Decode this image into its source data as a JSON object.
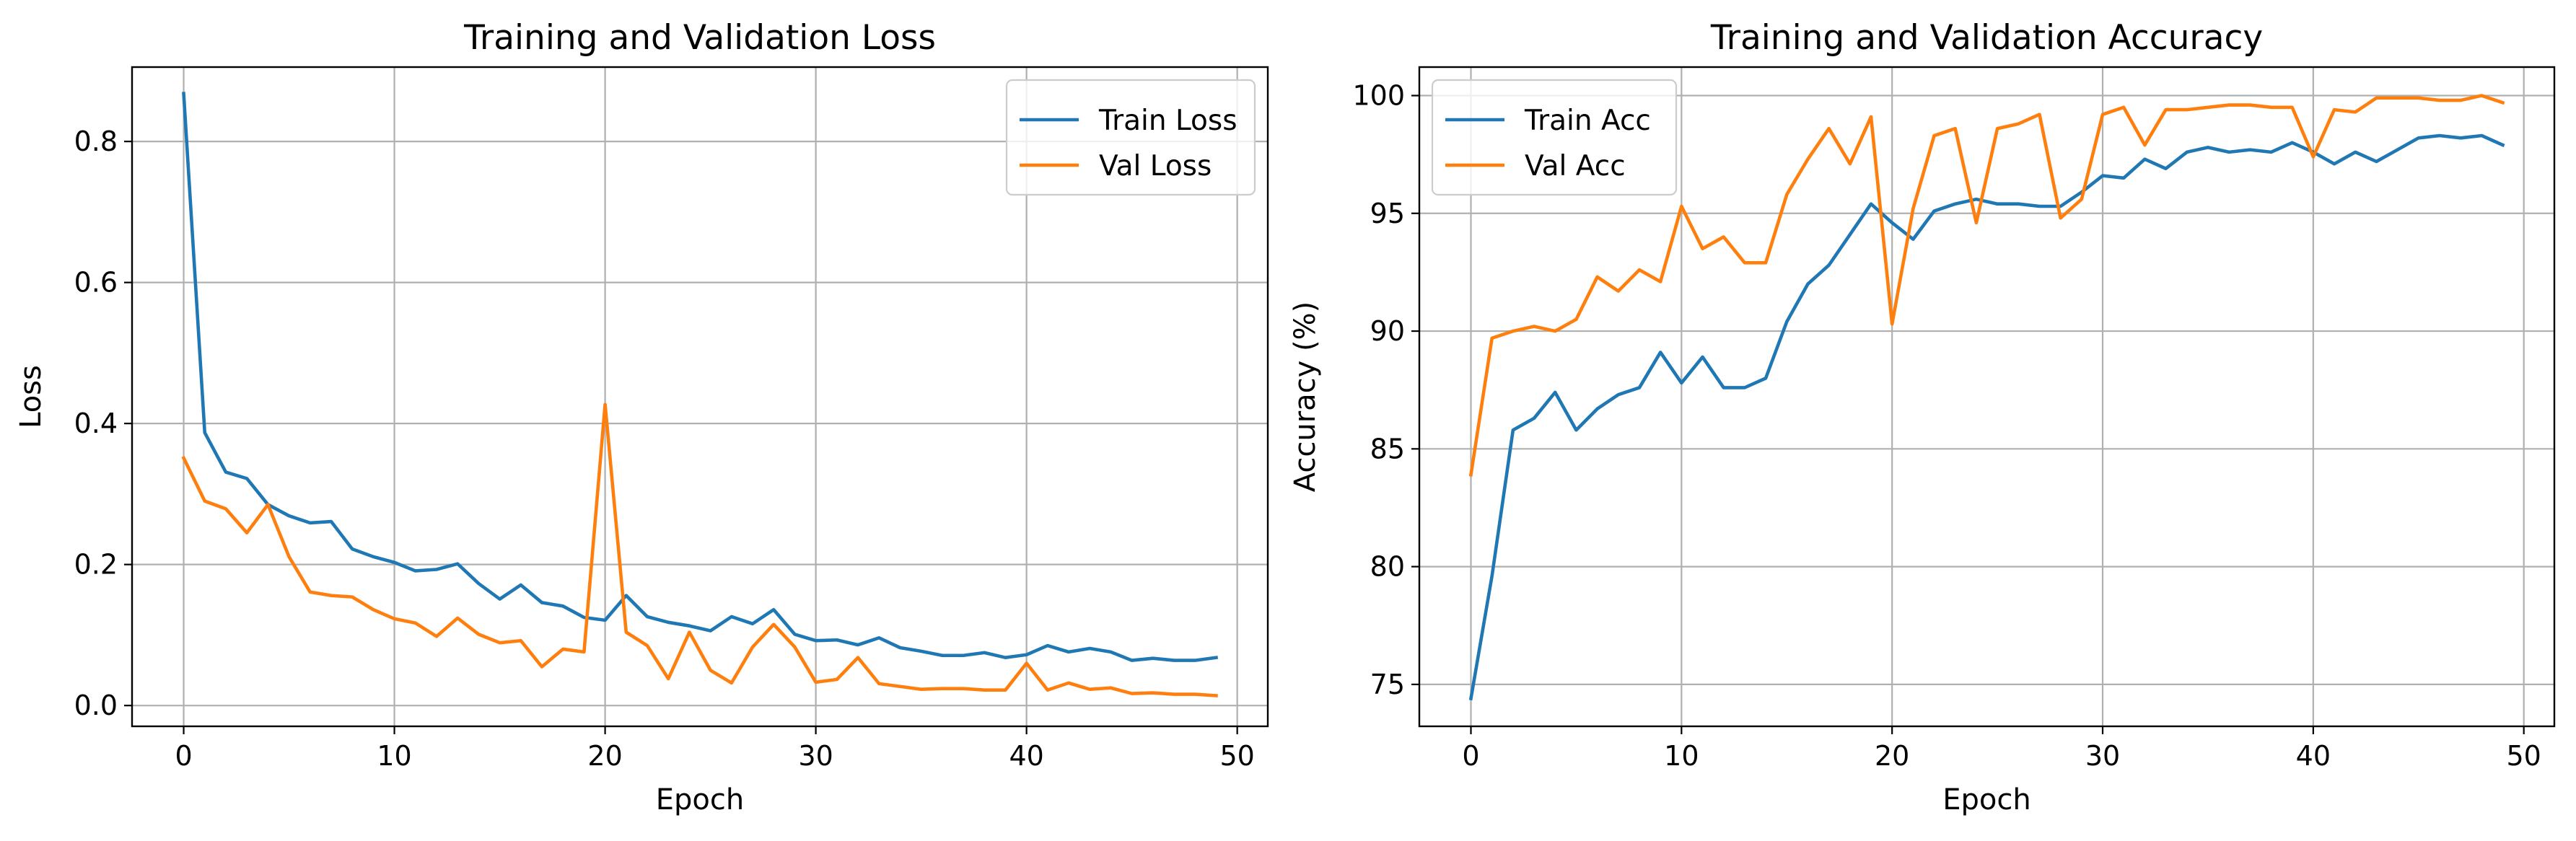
{
  "colors": {
    "train": "#1f77b4",
    "val": "#ff7f0e",
    "grid": "#b0b0b0",
    "axis": "#000000"
  },
  "chart_data": [
    {
      "type": "line",
      "title": "Training and Validation Loss",
      "xlabel": "Epoch",
      "ylabel": "Loss",
      "xlim": [
        -2.45,
        51.45
      ],
      "ylim": [
        -0.0295,
        0.9055
      ],
      "xticks": [
        0,
        10,
        20,
        30,
        40,
        50
      ],
      "xtick_labels": [
        "0",
        "10",
        "20",
        "30",
        "40",
        "50"
      ],
      "yticks": [
        0.0,
        0.2,
        0.4,
        0.6,
        0.8
      ],
      "ytick_labels": [
        "0.0",
        "0.2",
        "0.4",
        "0.6",
        "0.8"
      ],
      "grid": true,
      "legend_position": "top-right",
      "x": [
        0,
        1,
        2,
        3,
        4,
        5,
        6,
        7,
        8,
        9,
        10,
        11,
        12,
        13,
        14,
        15,
        16,
        17,
        18,
        19,
        20,
        21,
        22,
        23,
        24,
        25,
        26,
        27,
        28,
        29,
        30,
        31,
        32,
        33,
        34,
        35,
        36,
        37,
        38,
        39,
        40,
        41,
        42,
        43,
        44,
        45,
        46,
        47,
        48,
        49
      ],
      "series": [
        {
          "name": "Train Loss",
          "color_key": "train",
          "values": [
            0.868,
            0.387,
            0.331,
            0.322,
            0.285,
            0.269,
            0.259,
            0.261,
            0.222,
            0.211,
            0.203,
            0.191,
            0.193,
            0.201,
            0.173,
            0.151,
            0.171,
            0.146,
            0.141,
            0.125,
            0.121,
            0.156,
            0.126,
            0.118,
            0.113,
            0.106,
            0.126,
            0.116,
            0.136,
            0.101,
            0.092,
            0.093,
            0.086,
            0.096,
            0.082,
            0.077,
            0.071,
            0.071,
            0.075,
            0.068,
            0.072,
            0.085,
            0.076,
            0.081,
            0.076,
            0.064,
            0.067,
            0.064,
            0.064,
            0.068
          ]
        },
        {
          "name": "Val Loss",
          "color_key": "val",
          "values": [
            0.351,
            0.29,
            0.279,
            0.245,
            0.285,
            0.211,
            0.161,
            0.156,
            0.154,
            0.136,
            0.123,
            0.117,
            0.098,
            0.124,
            0.101,
            0.089,
            0.092,
            0.055,
            0.08,
            0.076,
            0.427,
            0.104,
            0.085,
            0.038,
            0.104,
            0.05,
            0.032,
            0.083,
            0.115,
            0.083,
            0.033,
            0.037,
            0.068,
            0.031,
            0.027,
            0.023,
            0.024,
            0.024,
            0.022,
            0.022,
            0.06,
            0.022,
            0.032,
            0.023,
            0.025,
            0.017,
            0.018,
            0.016,
            0.016,
            0.014
          ]
        }
      ]
    },
    {
      "type": "line",
      "title": "Training and Validation Accuracy",
      "xlabel": "Epoch",
      "ylabel": "Accuracy (%)",
      "xlim": [
        -2.45,
        51.45
      ],
      "ylim": [
        73.22,
        101.21
      ],
      "xticks": [
        0,
        10,
        20,
        30,
        40,
        50
      ],
      "xtick_labels": [
        "0",
        "10",
        "20",
        "30",
        "40",
        "50"
      ],
      "yticks": [
        75,
        80,
        85,
        90,
        95,
        100
      ],
      "ytick_labels": [
        "75",
        "80",
        "85",
        "90",
        "95",
        "100"
      ],
      "grid": true,
      "legend_position": "top-left",
      "x": [
        0,
        1,
        2,
        3,
        4,
        5,
        6,
        7,
        8,
        9,
        10,
        11,
        12,
        13,
        14,
        15,
        16,
        17,
        18,
        19,
        20,
        21,
        22,
        23,
        24,
        25,
        26,
        27,
        28,
        29,
        30,
        31,
        32,
        33,
        34,
        35,
        36,
        37,
        38,
        39,
        40,
        41,
        42,
        43,
        44,
        45,
        46,
        47,
        48,
        49
      ],
      "series": [
        {
          "name": "Train Acc",
          "color_key": "train",
          "values": [
            74.4,
            79.6,
            85.8,
            86.3,
            87.4,
            85.8,
            86.7,
            87.3,
            87.6,
            89.1,
            87.8,
            88.9,
            87.6,
            87.6,
            88.0,
            90.4,
            92.0,
            92.8,
            94.1,
            95.4,
            94.6,
            93.9,
            95.1,
            95.4,
            95.6,
            95.4,
            95.4,
            95.3,
            95.3,
            95.9,
            96.6,
            96.5,
            97.3,
            96.9,
            97.6,
            97.8,
            97.6,
            97.7,
            97.6,
            98.0,
            97.6,
            97.1,
            97.6,
            97.2,
            97.7,
            98.2,
            98.3,
            98.2,
            98.3,
            97.9
          ]
        },
        {
          "name": "Val Acc",
          "color_key": "val",
          "values": [
            83.9,
            89.7,
            90.0,
            90.2,
            90.0,
            90.5,
            92.3,
            91.7,
            92.6,
            92.1,
            95.3,
            93.5,
            94.0,
            92.9,
            92.9,
            95.8,
            97.3,
            98.6,
            97.1,
            99.1,
            90.3,
            95.2,
            98.3,
            98.6,
            94.6,
            98.6,
            98.8,
            99.2,
            94.8,
            95.6,
            99.2,
            99.5,
            97.9,
            99.4,
            99.4,
            99.5,
            99.6,
            99.6,
            99.5,
            99.5,
            97.4,
            99.4,
            99.3,
            99.9,
            99.9,
            99.9,
            99.8,
            99.8,
            100.0,
            99.7
          ]
        }
      ]
    }
  ]
}
